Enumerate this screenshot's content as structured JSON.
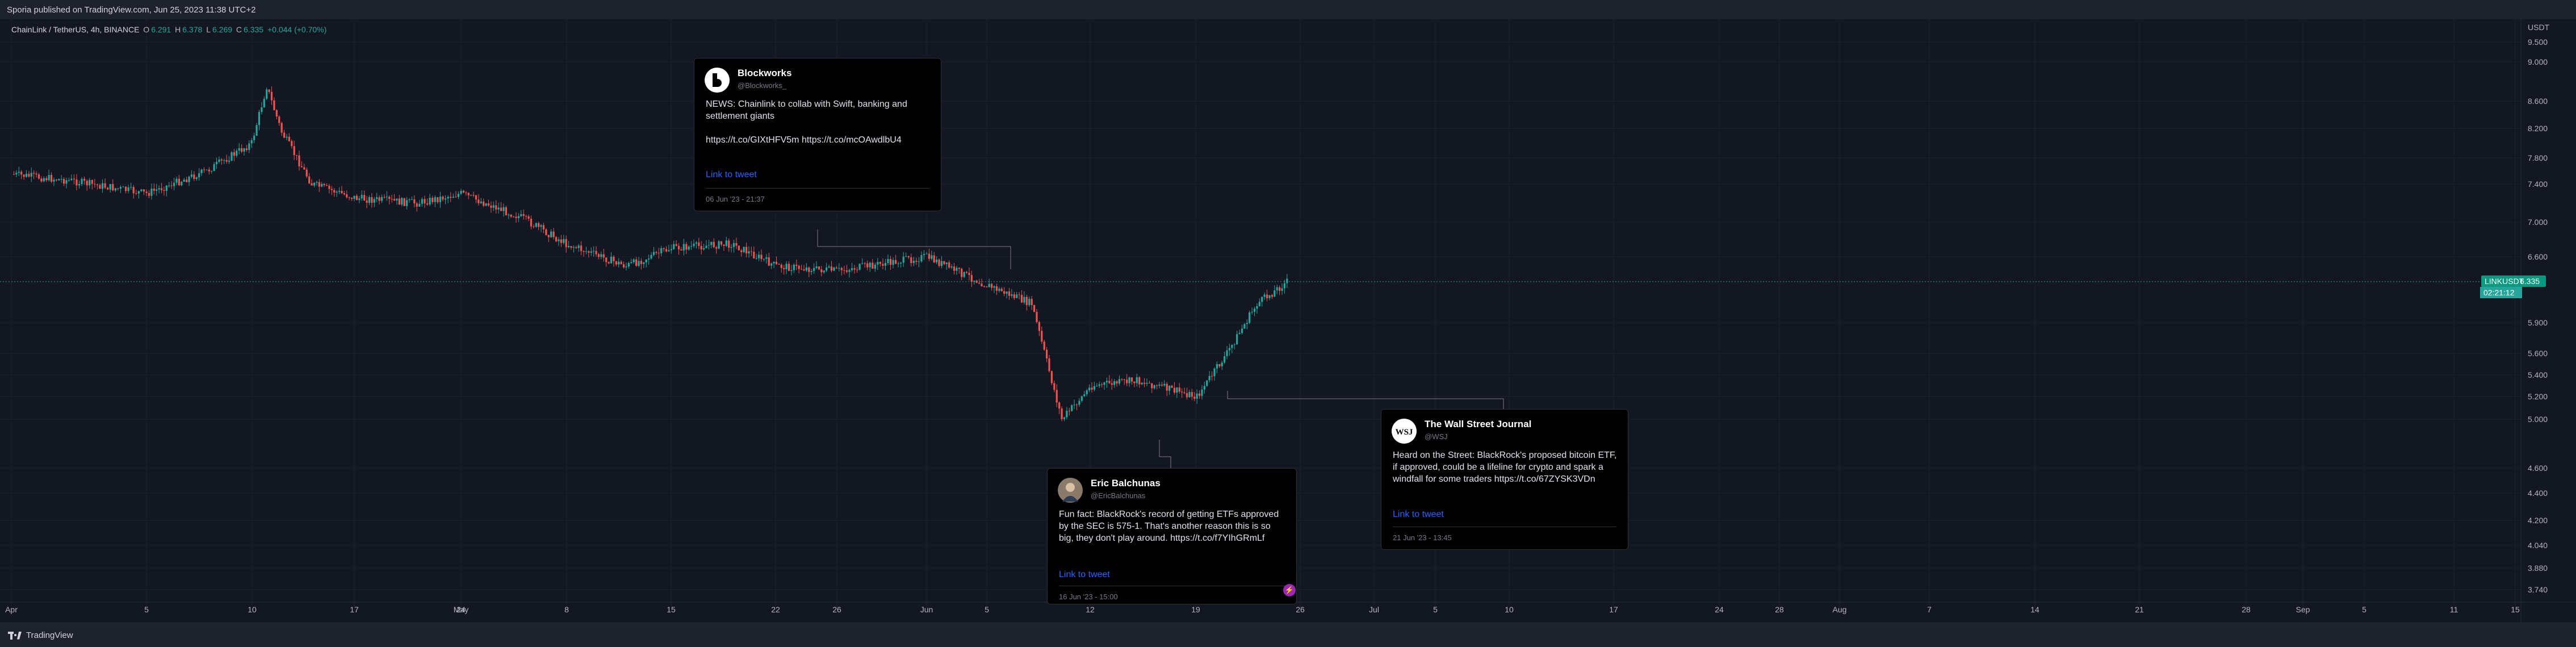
{
  "header": {
    "published": "Sporia published on TradingView.com, Jun 25, 2023 11:38 UTC+2"
  },
  "symbol_info": {
    "title": "ChainLink / TetherUS, 4h, BINANCE",
    "o_label": "O",
    "o": "6.291",
    "h_label": "H",
    "h": "6.378",
    "l_label": "L",
    "l": "6.269",
    "c_label": "C",
    "c": "6.335",
    "change": "+0.044 (+0.70%)"
  },
  "price_axis": {
    "currency": "USDT",
    "ticks": [
      "9.500",
      "9.000",
      "8.600",
      "8.200",
      "7.800",
      "7.400",
      "7.000",
      "6.600",
      "5.900",
      "5.600",
      "5.400",
      "5.200",
      "5.000",
      "4.600",
      "4.400",
      "4.200",
      "4.040",
      "3.880",
      "3.740"
    ]
  },
  "time_axis": {
    "ticks": [
      "Apr",
      "5",
      "10",
      "17",
      "24",
      "May",
      "8",
      "15",
      "22",
      "26",
      "Jun",
      "5",
      "12",
      "19",
      "26",
      "Jul",
      "5",
      "10",
      "17",
      "24",
      "28",
      "Aug",
      "7",
      "14",
      "21",
      "28",
      "Sep",
      "5",
      "11",
      "15"
    ]
  },
  "price_tag": {
    "symbol": "LINKUSDT",
    "price": "6.335",
    "countdown": "02:21:12"
  },
  "footer": {
    "brand": "TradingView"
  },
  "tweets": [
    {
      "name": "Blockworks",
      "handle": "@Blockworks_",
      "text": "NEWS: Chainlink to collab with Swift, banking and settlement giants\n\nhttps://t.co/GIXtHFV5m https://t.co/mcOAwdlbU4",
      "link": "Link to tweet",
      "date": "06 Jun '23 - 21:37"
    },
    {
      "name": "Eric Balchunas",
      "handle": "@EricBalchunas",
      "text": "Fun fact: BlackRock's record of getting ETFs approved by the SEC is 575-1. That's another reason this is so big, they don't play around. https://t.co/f7YIhGRmLf",
      "link": "Link to tweet",
      "date": "16 Jun '23 - 15:00"
    },
    {
      "name": "The Wall Street Journal",
      "handle": "@WSJ",
      "text": "Heard on the Street: BlackRock's proposed bitcoin ETF, if approved, could be a lifeline for crypto and spark a windfall for some traders https://t.co/67ZYSK3VDn",
      "link": "Link to tweet",
      "date": "21 Jun '23 - 13:45"
    }
  ],
  "chart_data": {
    "type": "candlestick",
    "symbol": "LINKUSDT",
    "interval": "4h",
    "exchange": "BINANCE",
    "x_range": [
      "Apr",
      "Sep 15"
    ],
    "y_range": [
      3.74,
      9.5
    ],
    "y_scale": "log",
    "grid": true,
    "price_path": [
      {
        "date": "Apr 1",
        "close": 7.55
      },
      {
        "date": "Apr 5",
        "close": 7.45
      },
      {
        "date": "Apr 10",
        "close": 7.3
      },
      {
        "date": "Apr 14",
        "close": 7.6
      },
      {
        "date": "Apr 17",
        "close": 8.0
      },
      {
        "date": "Apr 18",
        "close": 8.75
      },
      {
        "date": "Apr 19",
        "close": 8.15
      },
      {
        "date": "Apr 21",
        "close": 7.4
      },
      {
        "date": "Apr 24",
        "close": 7.25
      },
      {
        "date": "Apr 28",
        "close": 7.2
      },
      {
        "date": "May 1",
        "close": 7.3
      },
      {
        "date": "May 5",
        "close": 7.05
      },
      {
        "date": "May 8",
        "close": 6.75
      },
      {
        "date": "May 12",
        "close": 6.5
      },
      {
        "date": "May 15",
        "close": 6.7
      },
      {
        "date": "May 19",
        "close": 6.75
      },
      {
        "date": "May 22",
        "close": 6.5
      },
      {
        "date": "May 26",
        "close": 6.45
      },
      {
        "date": "Jun 1",
        "close": 6.6
      },
      {
        "date": "Jun 5",
        "close": 6.3
      },
      {
        "date": "Jun 8",
        "close": 6.1
      },
      {
        "date": "Jun 10",
        "close": 5.0
      },
      {
        "date": "Jun 12",
        "close": 5.3
      },
      {
        "date": "Jun 15",
        "close": 5.35
      },
      {
        "date": "Jun 19",
        "close": 5.2
      },
      {
        "date": "Jun 21",
        "close": 5.6
      },
      {
        "date": "Jun 23",
        "close": 6.1
      },
      {
        "date": "Jun 25",
        "close": 6.335
      }
    ]
  }
}
